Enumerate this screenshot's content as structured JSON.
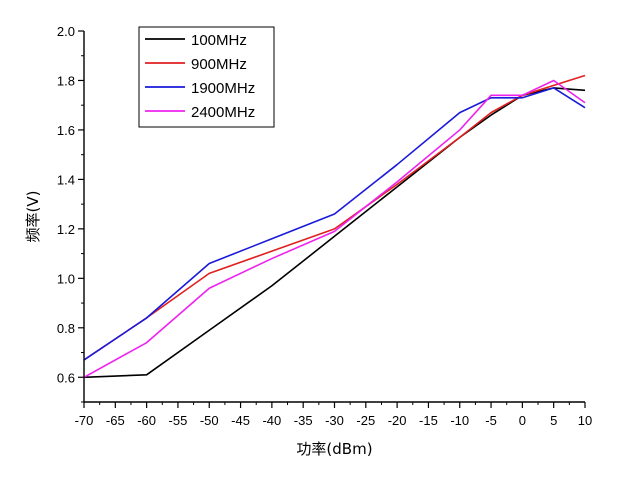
{
  "chart_data": {
    "type": "line",
    "title": "",
    "xlabel": "功率(dBm)",
    "ylabel": "频率(V)",
    "xlim": [
      -70,
      10
    ],
    "ylim": [
      0.5,
      2.0
    ],
    "x_ticks": [
      -70,
      -65,
      -60,
      -55,
      -50,
      -45,
      -40,
      -35,
      -30,
      -25,
      -20,
      -15,
      -10,
      -5,
      0,
      5,
      10
    ],
    "y_ticks": [
      0.6,
      0.8,
      1.0,
      1.2,
      1.4,
      1.6,
      1.8,
      2.0
    ],
    "y_tick_labels": [
      "0.6",
      "0.8",
      "1.0",
      "1.2",
      "1.4",
      "1.6",
      "1.8",
      "2.0"
    ],
    "grid": false,
    "legend_position": "top-left",
    "series": [
      {
        "name": "100MHz",
        "color": "#000000",
        "x": [
          -70,
          -60,
          -50,
          -40,
          -30,
          -20,
          -10,
          -5,
          0,
          5,
          10
        ],
        "y": [
          0.6,
          0.61,
          0.79,
          0.97,
          1.17,
          1.37,
          1.57,
          1.66,
          1.74,
          1.77,
          1.76
        ]
      },
      {
        "name": "900MHz",
        "color": "#e02020",
        "x": [
          -70,
          -60,
          -50,
          -40,
          -30,
          -20,
          -10,
          -5,
          0,
          5,
          10
        ],
        "y": [
          0.67,
          0.84,
          1.02,
          1.11,
          1.2,
          1.38,
          1.57,
          1.67,
          1.74,
          1.78,
          1.82
        ]
      },
      {
        "name": "1900MHz",
        "color": "#1a1adb",
        "x": [
          -70,
          -60,
          -50,
          -40,
          -30,
          -20,
          -10,
          -5,
          0,
          5,
          10
        ],
        "y": [
          0.67,
          0.84,
          1.06,
          1.16,
          1.26,
          1.46,
          1.67,
          1.73,
          1.73,
          1.77,
          1.69
        ]
      },
      {
        "name": "2400MHz",
        "color": "#ee22ee",
        "x": [
          -70,
          -60,
          -50,
          -40,
          -30,
          -20,
          -10,
          -5,
          0,
          5,
          10
        ],
        "y": [
          0.6,
          0.74,
          0.96,
          1.08,
          1.19,
          1.39,
          1.6,
          1.74,
          1.74,
          1.8,
          1.71
        ]
      }
    ]
  }
}
